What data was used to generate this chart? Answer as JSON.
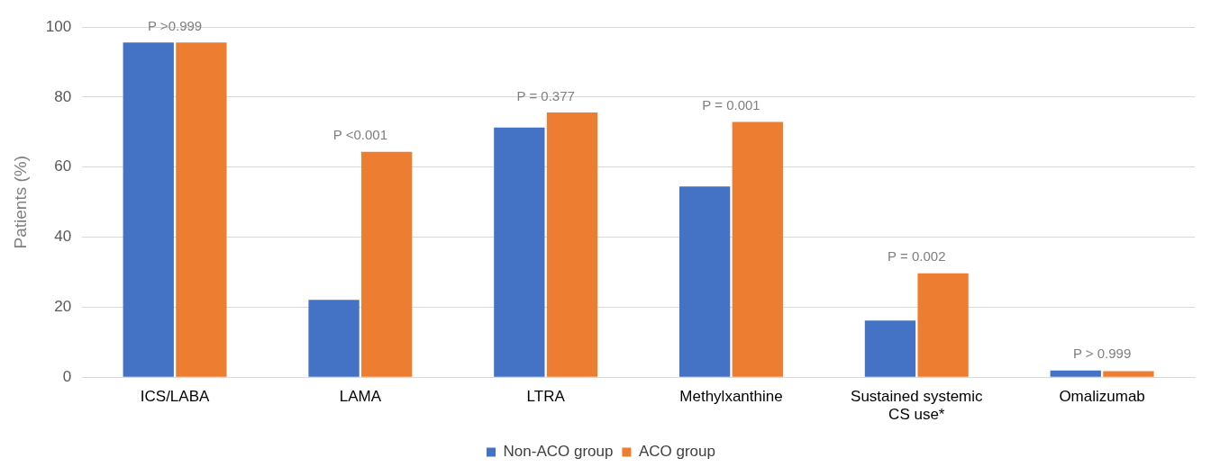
{
  "chart_data": {
    "type": "bar",
    "ylabel": "Patients (%)",
    "categories": [
      "ICS/LABA",
      "LAMA",
      "LTRA",
      "Methylxanthine",
      "Sustained systemic CS use*",
      "Omalizumab"
    ],
    "series": [
      {
        "name": "Non-ACO group",
        "color": "#4472c4",
        "values": [
          95.6,
          22.1,
          71.3,
          54.5,
          16.2,
          1.9
        ]
      },
      {
        "name": "ACO group",
        "color": "#ed7d31",
        "values": [
          95.6,
          64.4,
          75.6,
          72.9,
          29.7,
          1.7
        ]
      }
    ],
    "ylim": [
      0,
      100
    ],
    "yticks": [
      0,
      20,
      40,
      60,
      80,
      100
    ],
    "grid": "y",
    "legend": "bottom",
    "annotations": [
      {
        "text": "P >0.999",
        "x": "ICS/LABA",
        "y": 95.6
      },
      {
        "text": "P <0.001",
        "x": "LAMA",
        "y": 64.4
      },
      {
        "text": "P = 0.377",
        "x": "LTRA",
        "y": 75.6
      },
      {
        "text": "P = 0.001",
        "x": "Methylxanthine",
        "y": 72.9
      },
      {
        "text": "P = 0.002",
        "x": "Sustained systemic CS use*",
        "y": 29.7
      },
      {
        "text": "P > 0.999",
        "x": "Omalizumab",
        "y": 1.9
      }
    ]
  }
}
